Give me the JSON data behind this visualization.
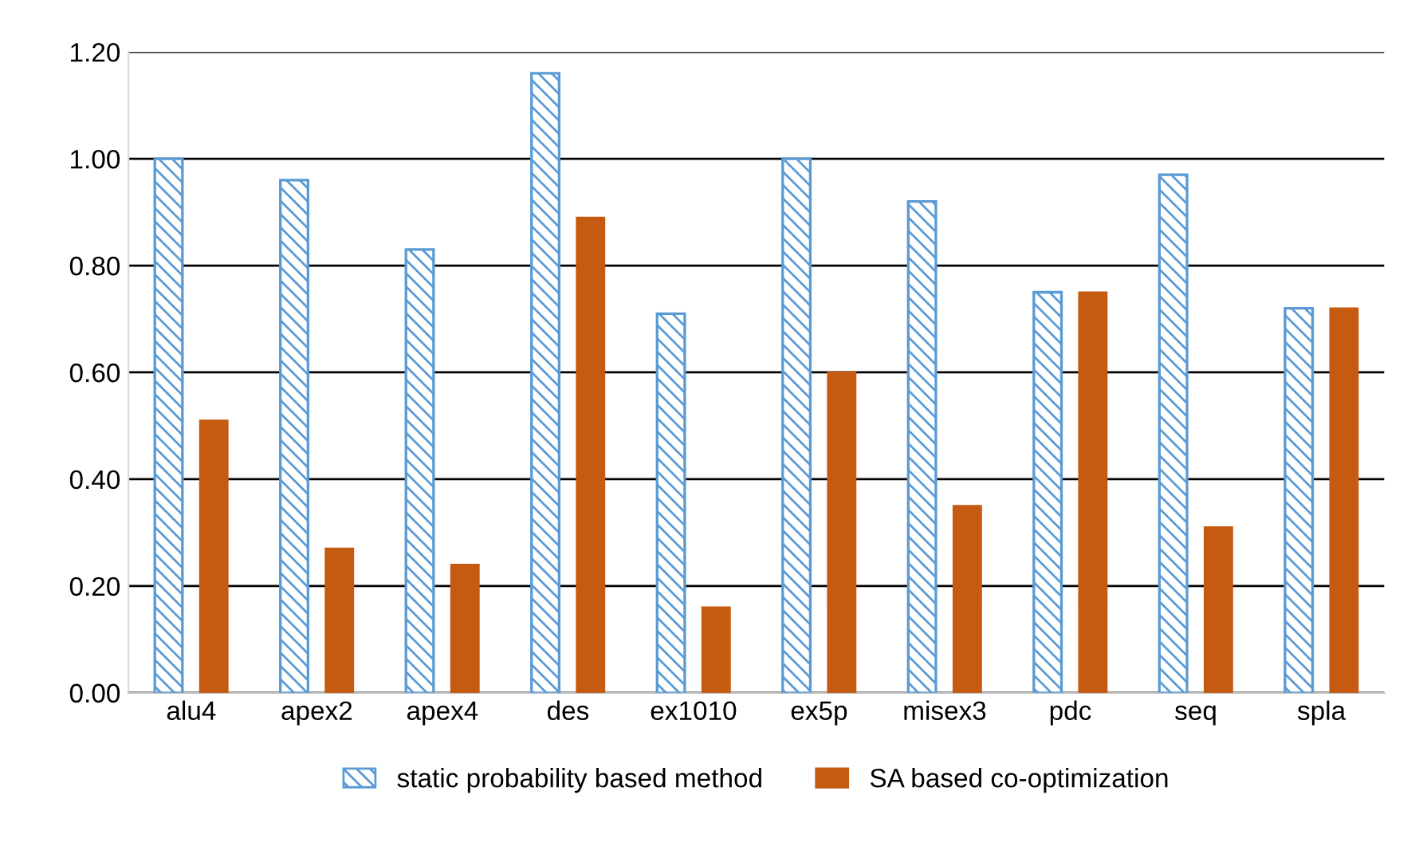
{
  "chart_data": {
    "type": "bar",
    "categories": [
      "alu4",
      "apex2",
      "apex4",
      "des",
      "ex1010",
      "ex5p",
      "misex3",
      "pdc",
      "seq",
      "spla"
    ],
    "series": [
      {
        "name": "static probability based method",
        "color": "#5b9bd5",
        "values": [
          1.0,
          0.96,
          0.83,
          1.16,
          0.71,
          1.0,
          0.92,
          0.75,
          0.97,
          0.72
        ]
      },
      {
        "name": "SA based co-optimization",
        "color": "#c55a11",
        "values": [
          0.51,
          0.27,
          0.24,
          0.89,
          0.16,
          0.6,
          0.35,
          0.75,
          0.31,
          0.72
        ]
      }
    ],
    "ylim": [
      0,
      1.2
    ],
    "yticks": [
      {
        "value": 0,
        "label": "0.00"
      },
      {
        "value": 0.2,
        "label": "0.20"
      },
      {
        "value": 0.4,
        "label": "0.40"
      },
      {
        "value": 0.6,
        "label": "0.60"
      },
      {
        "value": 0.8,
        "label": "0.80"
      },
      {
        "value": 1.0,
        "label": "1.00"
      },
      {
        "value": 1.2,
        "label": "1.20"
      }
    ],
    "grid": "y",
    "legend": "bottom"
  }
}
